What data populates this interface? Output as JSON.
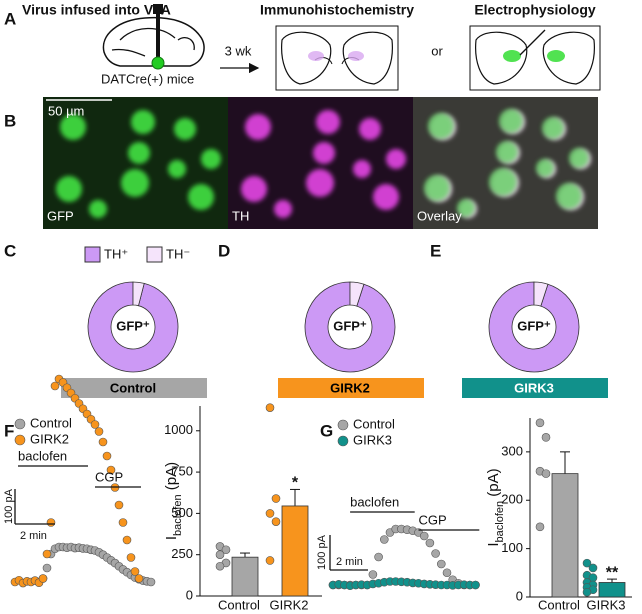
{
  "panel_labels": [
    "A",
    "B",
    "C",
    "D",
    "E",
    "F",
    "G"
  ],
  "panel_a": {
    "title": "Virus infused into VTA",
    "mice": "DATCre(+) mice",
    "interval": "3 wk",
    "method_1": "Immunohistochemistry",
    "conjunction": "or",
    "method_2": "Electrophysiology"
  },
  "panel_b": {
    "scale_bar": "50 µm",
    "channels": [
      "GFP",
      "TH",
      "Overlay"
    ]
  },
  "chart_data": [
    {
      "type": "pie",
      "categories": [
        "TH⁺",
        "TH⁻"
      ],
      "values": [
        96,
        4
      ],
      "colors": [
        "#cc99f5",
        "#f5e4fb"
      ],
      "center_label": "GFP⁺",
      "group": "Control",
      "group_color": "#a6a6a6",
      "group_text_color": "#000000"
    },
    {
      "type": "pie",
      "values": [
        95,
        5
      ],
      "colors": [
        "#cc99f5",
        "#f5e4fb"
      ],
      "center_label": "GFP⁺",
      "group": "GIRK2",
      "group_color": "#f7941d",
      "group_text_color": "#000000"
    },
    {
      "type": "pie",
      "values": [
        95,
        5
      ],
      "colors": [
        "#cc99f5",
        "#f5e4fb"
      ],
      "center_label": "GFP⁺",
      "group": "GIRK3",
      "group_color": "#11918b",
      "group_text_color": "#ffffff"
    },
    {
      "type": "scatter",
      "x": [
        0,
        0.2,
        0.4,
        0.6,
        0.8,
        1.0,
        1.2,
        1.4,
        1.6,
        1.8,
        2.0,
        2.2,
        2.4,
        2.6,
        2.8,
        3.0,
        3.2,
        3.4,
        3.6,
        3.8,
        4.0,
        4.2,
        4.4,
        4.6,
        4.8,
        5.0,
        5.2,
        5.4,
        5.6,
        5.8,
        6.0,
        6.2,
        6.4,
        6.6,
        6.8
      ],
      "series": [
        {
          "name": "Control",
          "color": "#a6a6a6",
          "values": [
            null,
            null,
            null,
            null,
            null,
            null,
            null,
            10,
            40,
            80,
            95,
            100,
            100,
            98,
            100,
            97,
            98,
            96,
            95,
            92,
            90,
            85,
            78,
            70,
            62,
            54,
            45,
            36,
            28,
            20,
            13,
            8,
            4,
            2,
            0
          ]
        },
        {
          "name": "GIRK2",
          "color": "#f7941d",
          "values": [
            0,
            5,
            -3,
            2,
            0,
            4,
            -2,
            10,
            80,
            170,
            560,
            580,
            570,
            555,
            540,
            525,
            510,
            495,
            480,
            465,
            450,
            430,
            400,
            360,
            320,
            270,
            220,
            170,
            120,
            70,
            30,
            10,
            null,
            null,
            null
          ]
        }
      ],
      "annotations": [
        {
          "text": "baclofen",
          "x": [
            0.15,
            3.65
          ]
        },
        {
          "text": "CGP",
          "x": [
            4.0,
            6.3
          ]
        }
      ],
      "scalebar_y": {
        "value": 100,
        "label": "100 pA"
      },
      "scalebar_x": {
        "value": 2,
        "label": "2 min"
      }
    },
    {
      "type": "bar",
      "categories": [
        "Control",
        "GIRK2"
      ],
      "values": [
        235,
        545
      ],
      "errors": [
        25,
        100
      ],
      "colors": [
        "#a6a6a6",
        "#f7941d"
      ],
      "points": [
        [
          300,
          280,
          250,
          200,
          180
        ],
        [
          1140,
          590,
          500,
          450,
          215
        ]
      ],
      "significance": [
        null,
        "*"
      ],
      "ylabel": {
        "main": "I",
        "sub": "baclofen",
        "unit": " (pA)"
      },
      "ylim": [
        0,
        1150
      ],
      "yticks": [
        0,
        250,
        500,
        750,
        1000
      ]
    },
    {
      "type": "scatter",
      "x": [
        0,
        0.3,
        0.6,
        0.9,
        1.2,
        1.5,
        1.8,
        2.1,
        2.4,
        2.7,
        3.0,
        3.3,
        3.6,
        3.9,
        4.2,
        4.5,
        4.8,
        5.1,
        5.4,
        5.7,
        6.0,
        6.3,
        6.6,
        6.9,
        7.2,
        7.5
      ],
      "series": [
        {
          "name": "Control",
          "color": "#a6a6a6",
          "values": [
            0,
            0,
            0,
            0,
            0,
            0,
            0,
            30,
            80,
            130,
            150,
            160,
            160,
            158,
            155,
            150,
            140,
            120,
            90,
            60,
            35,
            15,
            5,
            0,
            0,
            0
          ]
        },
        {
          "name": "GIRK3",
          "color": "#11918b",
          "values": [
            0,
            2,
            0,
            -2,
            0,
            1,
            0,
            3,
            5,
            8,
            10,
            10,
            9,
            8,
            6,
            5,
            3,
            2,
            1,
            0,
            0,
            -1,
            0,
            1,
            0,
            0
          ]
        }
      ],
      "annotations": [
        {
          "text": "baclofen",
          "x": [
            0.9,
            4.3
          ]
        },
        {
          "text": "CGP",
          "x": [
            4.5,
            7.7
          ]
        }
      ],
      "scalebar_y": {
        "value": 100,
        "label": "100 pA"
      },
      "scalebar_x": {
        "value": 2,
        "label": "2 min"
      }
    },
    {
      "type": "bar",
      "categories": [
        "Control",
        "GIRK3"
      ],
      "values": [
        255,
        30
      ],
      "errors": [
        45,
        7
      ],
      "colors": [
        "#a6a6a6",
        "#11918b"
      ],
      "points": [
        [
          360,
          330,
          260,
          255,
          145
        ],
        [
          70,
          60,
          45,
          40,
          30,
          25,
          20,
          15,
          10
        ]
      ],
      "significance": [
        null,
        "**"
      ],
      "ylabel": {
        "main": "I",
        "sub": "baclofen",
        "unit": " (pA)"
      },
      "ylim": [
        0,
        370
      ],
      "yticks": [
        0,
        100,
        200,
        300
      ]
    }
  ]
}
